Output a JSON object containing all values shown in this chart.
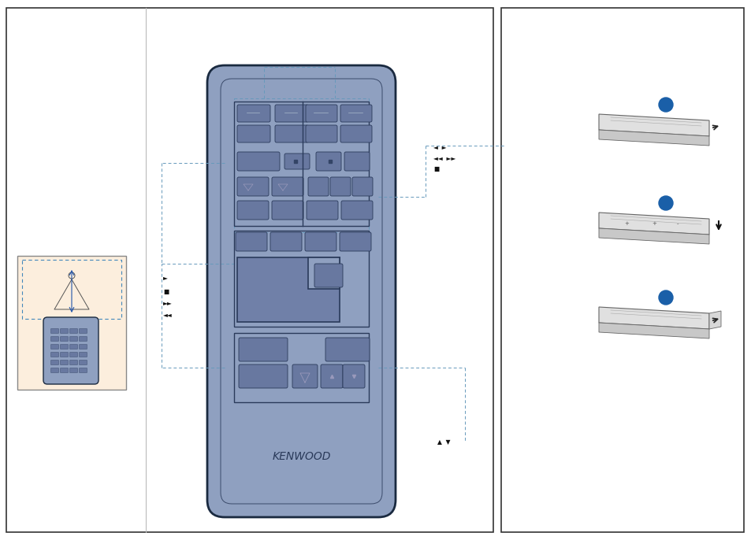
{
  "bg_color": "#ffffff",
  "remote_fill": "#8fa0c0",
  "remote_edge": "#1a2a40",
  "btn_fill": "#6878a0",
  "btn_edge": "#2a3a5a",
  "box_fill": "#6070a8",
  "kenwood_text": "KENWOOD",
  "blue_dot": "#1a5fa8",
  "dash_color": "#6699bb",
  "label_color": "#111111",
  "small_bg": "#fceedd",
  "panel_edge": "#333333"
}
